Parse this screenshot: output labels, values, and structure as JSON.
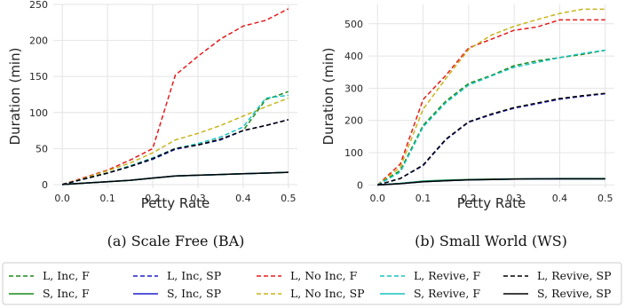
{
  "chart_data": [
    {
      "type": "line",
      "caption": "(a) Scale Free (BA)",
      "xlabel": "Petty Rate",
      "ylabel": "Duration (min)",
      "xlim": [
        -0.02,
        0.52
      ],
      "ylim": [
        -5,
        250
      ],
      "xticks": [
        "0.0",
        "0.1",
        "0.2",
        "0.3",
        "0.4",
        "0.5"
      ],
      "xtick_values": [
        0.0,
        0.1,
        0.2,
        0.3,
        0.4,
        0.5
      ],
      "yticks": [
        "0",
        "50",
        "100",
        "150",
        "200",
        "250"
      ],
      "ytick_values": [
        0,
        50,
        100,
        150,
        200,
        250
      ],
      "grid": true,
      "x": [
        0.0,
        0.05,
        0.1,
        0.15,
        0.2,
        0.25,
        0.3,
        0.35,
        0.4,
        0.45,
        0.5
      ],
      "series": [
        {
          "name": "L, Inc, F",
          "values": [
            0,
            8,
            16,
            26,
            36,
            50,
            55,
            62,
            75,
            118,
            129
          ]
        },
        {
          "name": "S, Inc, F",
          "values": [
            0,
            2,
            4,
            6,
            9,
            12,
            13,
            14,
            15,
            16,
            17
          ]
        },
        {
          "name": "L, Inc, SP",
          "values": [
            0,
            8,
            16,
            25,
            35,
            49,
            55,
            62,
            75,
            82,
            90
          ]
        },
        {
          "name": "S, Inc, SP",
          "values": [
            0,
            2,
            4,
            6,
            9,
            12,
            13,
            14,
            15,
            16,
            17
          ]
        },
        {
          "name": "L, No Inc, F",
          "values": [
            0,
            10,
            20,
            34,
            50,
            152,
            178,
            202,
            220,
            228,
            244
          ]
        },
        {
          "name": "L, No Inc, SP",
          "values": [
            0,
            9,
            19,
            30,
            44,
            62,
            71,
            82,
            95,
            108,
            120
          ]
        },
        {
          "name": "L, Revive, F",
          "values": [
            0,
            8,
            16,
            26,
            37,
            50,
            57,
            66,
            80,
            120,
            124
          ]
        },
        {
          "name": "S, Revive, F",
          "values": [
            0,
            2,
            4,
            6,
            9,
            12,
            13,
            14,
            15,
            16,
            17
          ]
        },
        {
          "name": "L, Revive, SP",
          "values": [
            0,
            8,
            16,
            25,
            36,
            50,
            55,
            63,
            75,
            82,
            90
          ]
        },
        {
          "name": "S, Revive, SP",
          "values": [
            0,
            2,
            4,
            6,
            9,
            12,
            13,
            14,
            15,
            16,
            17
          ]
        }
      ]
    },
    {
      "type": "line",
      "caption": "(b) Small World (WS)",
      "xlabel": "Petty Rate",
      "ylabel": "Duration (min)",
      "xlim": [
        -0.02,
        0.52
      ],
      "ylim": [
        -10,
        560
      ],
      "xticks": [
        "0.0",
        "0.1",
        "0.2",
        "0.3",
        "0.4",
        "0.5"
      ],
      "xtick_values": [
        0.0,
        0.1,
        0.2,
        0.3,
        0.4,
        0.5
      ],
      "yticks": [
        "0",
        "100",
        "200",
        "300",
        "400",
        "500"
      ],
      "ytick_values": [
        0,
        100,
        200,
        300,
        400,
        500
      ],
      "grid": true,
      "x": [
        0.0,
        0.05,
        0.1,
        0.15,
        0.2,
        0.25,
        0.3,
        0.35,
        0.4,
        0.45,
        0.5
      ],
      "series": [
        {
          "name": "L, Inc, F",
          "values": [
            0,
            45,
            185,
            260,
            315,
            340,
            370,
            385,
            395,
            405,
            418
          ]
        },
        {
          "name": "S, Inc, F",
          "values": [
            0,
            5,
            12,
            15,
            17,
            18,
            19,
            19,
            20,
            20,
            20
          ]
        },
        {
          "name": "L, Inc, SP",
          "values": [
            0,
            20,
            60,
            140,
            195,
            218,
            238,
            252,
            266,
            275,
            283
          ]
        },
        {
          "name": "S, Inc, SP",
          "values": [
            0,
            4,
            10,
            13,
            16,
            17,
            18,
            19,
            19,
            19,
            19
          ]
        },
        {
          "name": "L, No Inc, F",
          "values": [
            0,
            65,
            265,
            340,
            425,
            452,
            480,
            490,
            512,
            512,
            512
          ]
        },
        {
          "name": "L, No Inc, SP",
          "values": [
            0,
            55,
            235,
            330,
            420,
            465,
            492,
            513,
            532,
            545,
            545
          ]
        },
        {
          "name": "L, Revive, F",
          "values": [
            0,
            40,
            180,
            255,
            310,
            338,
            365,
            380,
            395,
            408,
            418
          ]
        },
        {
          "name": "S, Revive, F",
          "values": [
            0,
            5,
            11,
            14,
            16,
            17,
            18,
            19,
            19,
            19,
            19
          ]
        },
        {
          "name": "L, Revive, SP",
          "values": [
            0,
            20,
            62,
            142,
            196,
            220,
            240,
            254,
            268,
            277,
            284
          ]
        },
        {
          "name": "S, Revive, SP",
          "values": [
            0,
            4,
            10,
            13,
            16,
            17,
            18,
            19,
            19,
            19,
            19
          ]
        }
      ]
    }
  ],
  "legend": [
    {
      "label": "L, Inc, F",
      "color": "#1a8a1a",
      "dashed": true
    },
    {
      "label": "L, Inc, SP",
      "color": "#1f1fcc",
      "dashed": true
    },
    {
      "label": "L, No Inc, F",
      "color": "#e61a1a",
      "dashed": true
    },
    {
      "label": "L, Revive, F",
      "color": "#19c2c2",
      "dashed": true
    },
    {
      "label": "L, Revive, SP",
      "color": "#000000",
      "dashed": true
    },
    {
      "label": "S, Inc, F",
      "color": "#1a8a1a",
      "dashed": false
    },
    {
      "label": "S, Inc, SP",
      "color": "#1f1fcc",
      "dashed": false
    },
    {
      "label": "L, No Inc, SP",
      "color": "#c8b41a",
      "dashed": true
    },
    {
      "label": "S, Revive, F",
      "color": "#19c2c2",
      "dashed": false
    },
    {
      "label": "S, Revive, SP",
      "color": "#000000",
      "dashed": false
    }
  ],
  "colors": {
    "L, Inc, F": "#1a8a1a",
    "S, Inc, F": "#1a8a1a",
    "L, Inc, SP": "#1f1fcc",
    "S, Inc, SP": "#1f1fcc",
    "L, No Inc, F": "#e61a1a",
    "L, No Inc, SP": "#c8b41a",
    "L, Revive, F": "#19c2c2",
    "S, Revive, F": "#19c2c2",
    "L, Revive, SP": "#000000",
    "S, Revive, SP": "#000000"
  },
  "grid_color": "#e4e4e4"
}
